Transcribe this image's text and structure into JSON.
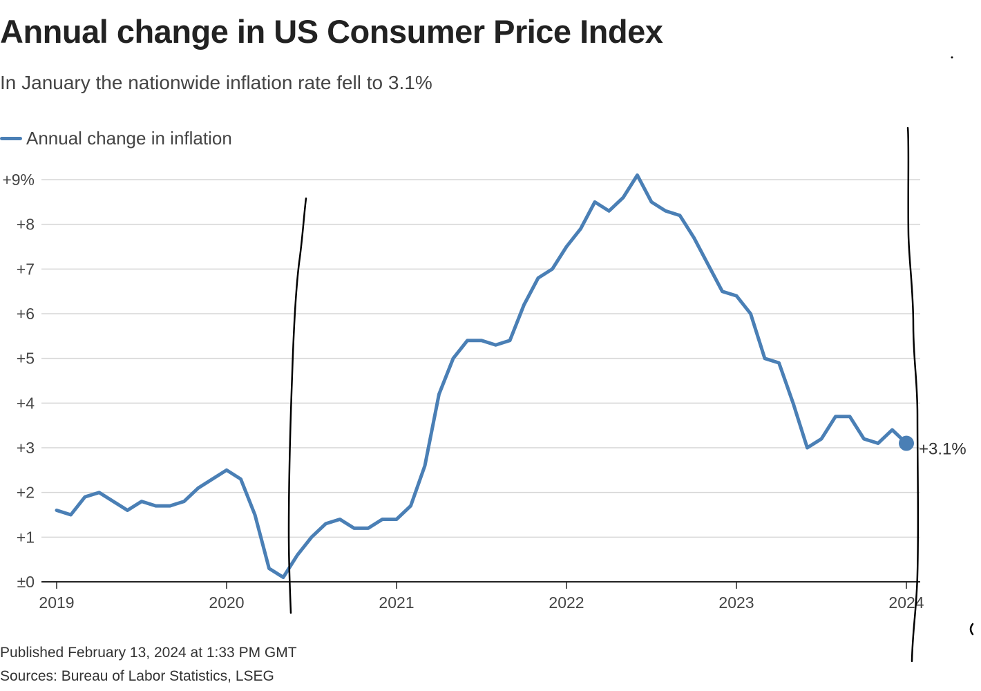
{
  "colors": {
    "series": "#4a7fb5",
    "grid": "#d6d6d6",
    "axis": "#222222",
    "annotation": "#000000"
  },
  "chart_data": {
    "type": "line",
    "title": "Annual change in US Consumer Price Index",
    "subtitle": "In January the nationwide inflation rate fell to 3.1%",
    "legend": [
      "Annual change in inflation"
    ],
    "legend_position": "top-left",
    "xlabel": "",
    "ylabel": "",
    "ylim": [
      0,
      9
    ],
    "yticks": [
      0,
      1,
      2,
      3,
      4,
      5,
      6,
      7,
      8,
      9
    ],
    "ytick_labels": [
      "±0",
      "+1",
      "+2",
      "+3",
      "+4",
      "+5",
      "+6",
      "+7",
      "+8",
      "+9%"
    ],
    "xticks": [
      "2019",
      "2020",
      "2021",
      "2022",
      "2023",
      "2024"
    ],
    "grid": true,
    "series": [
      {
        "name": "Annual change in inflation",
        "start": "2019-01",
        "values": [
          1.6,
          1.5,
          1.9,
          2.0,
          1.8,
          1.6,
          1.8,
          1.7,
          1.7,
          1.8,
          2.1,
          2.3,
          2.5,
          2.3,
          1.5,
          0.3,
          0.1,
          0.6,
          1.0,
          1.3,
          1.4,
          1.2,
          1.2,
          1.4,
          1.4,
          1.7,
          2.6,
          4.2,
          5.0,
          5.4,
          5.4,
          5.3,
          5.4,
          6.2,
          6.8,
          7.0,
          7.5,
          7.9,
          8.5,
          8.3,
          8.6,
          9.1,
          8.5,
          8.3,
          8.2,
          7.7,
          7.1,
          6.5,
          6.4,
          6.0,
          5.0,
          4.9,
          4.0,
          3.0,
          3.2,
          3.7,
          3.7,
          3.2,
          3.1,
          3.4,
          3.1
        ]
      }
    ],
    "end_label": "+3.1%"
  },
  "footer": {
    "published": "Published February 13, 2024 at 1:33 PM GMT",
    "sources": "Sources: Bureau of Labor Statistics, LSEG"
  }
}
